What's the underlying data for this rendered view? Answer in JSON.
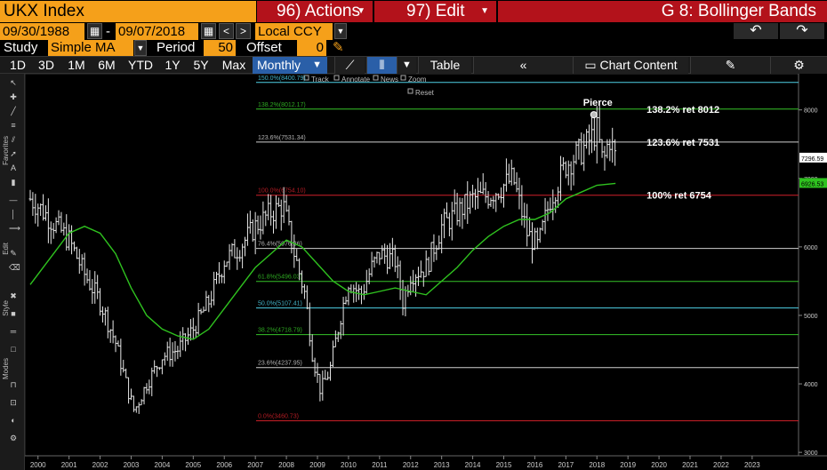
{
  "header": {
    "ticker": "UKX Index",
    "actions_label": "96) Actions",
    "edit_label": "97) Edit",
    "function_title": "G 8: Bollinger Bands"
  },
  "dates": {
    "start": "09/30/1988",
    "separator": "-",
    "end": "09/07/2018",
    "currency": "Local CCY"
  },
  "study": {
    "label": "Study",
    "value": "Simple MA",
    "period_label": "Period",
    "period_value": "50",
    "offset_label": "Offset",
    "offset_value": "0"
  },
  "tabs": [
    "1D",
    "3D",
    "1M",
    "6M",
    "YTD",
    "1Y",
    "5Y",
    "Max"
  ],
  "toolbar": {
    "frequency": "Monthly",
    "table_label": "Table",
    "chart_content_label": "Chart Content"
  },
  "chart_controls": {
    "track": "Track",
    "annotate": "Annotate",
    "news": "News",
    "zoom": "Zoom",
    "reset": "Reset"
  },
  "side_labels": [
    "Favorites",
    "Edit",
    "Style",
    "Modes"
  ],
  "colors": {
    "accent_orange": "#f5a01a",
    "action_red": "#b3121b",
    "active_tab": "#2a5fa8",
    "ma_line": "#2fc21f",
    "fib_green": "#36c428",
    "fib_red": "#d0202a",
    "fib_cyan": "#4fd0e6",
    "fib_gray": "#cfcfcf"
  },
  "chart_data": {
    "type": "line",
    "yticks": [
      3000,
      4000,
      5000,
      6000,
      7000,
      8000
    ],
    "ylim": [
      2950,
      8450
    ],
    "xticks": [
      "2000",
      "2001",
      "2002",
      "2003",
      "2004",
      "2005",
      "2006",
      "2007",
      "2008",
      "2009",
      "2010",
      "2011",
      "2012",
      "2013",
      "2014",
      "2015",
      "2016",
      "2017",
      "2018",
      "2019",
      "2020",
      "2021",
      "2022",
      "2023"
    ],
    "last_price_label": "7296.59",
    "ma_value_label": "6926.53",
    "fib_levels": [
      {
        "label": "150.0%(8400.79)",
        "value": 8400.79,
        "color": "cyan"
      },
      {
        "label": "138.2%(8012.17)",
        "value": 8012.17,
        "color": "green"
      },
      {
        "label": "123.6%(7531.34)",
        "value": 7531.34,
        "color": "gray"
      },
      {
        "label": "100.0%(6754.10)",
        "value": 6754.1,
        "color": "red"
      },
      {
        "label": "76.4%(5976.86)",
        "value": 5976.86,
        "color": "gray"
      },
      {
        "label": "61.8%(5496.03)",
        "value": 5496.03,
        "color": "green"
      },
      {
        "label": "50.0%(5107.41)",
        "value": 5107.41,
        "color": "cyan"
      },
      {
        "label": "38.2%(4718.79)",
        "value": 4718.79,
        "color": "green"
      },
      {
        "label": "23.6%(4237.95)",
        "value": 4237.95,
        "color": "gray"
      },
      {
        "label": "0.0%(3460.73)",
        "value": 3460.73,
        "color": "red"
      }
    ],
    "annotations": [
      {
        "text": "Pierce",
        "x": "2017.9",
        "y": 7930
      },
      {
        "text": "138.2% ret 8012",
        "x": "2019.6",
        "y": 8012
      },
      {
        "text": "123.6% ret 7531",
        "x": "2019.6",
        "y": 7531
      },
      {
        "text": "100% ret 6754",
        "x": "2019.6",
        "y": 6754
      }
    ],
    "series": [
      {
        "name": "UKX",
        "x": [
          1999.75,
          2000.0,
          2000.5,
          2001.0,
          2001.5,
          2002.0,
          2002.5,
          2002.9,
          2003.1,
          2003.5,
          2004.0,
          2004.5,
          2005.0,
          2005.5,
          2006.0,
          2006.5,
          2007.0,
          2007.5,
          2007.9,
          2008.2,
          2008.6,
          2008.85,
          2009.1,
          2009.4,
          2009.75,
          2010.0,
          2010.4,
          2010.75,
          2011.0,
          2011.5,
          2011.75,
          2012.0,
          2012.5,
          2013.0,
          2013.5,
          2014.0,
          2014.5,
          2015.0,
          2015.3,
          2015.75,
          2016.1,
          2016.5,
          2017.0,
          2017.5,
          2018.0,
          2018.2,
          2018.4,
          2018.6
        ],
        "close": [
          6700,
          6600,
          6350,
          6100,
          5600,
          5200,
          4600,
          3900,
          3600,
          4000,
          4400,
          4500,
          4800,
          5200,
          5800,
          6000,
          6300,
          6500,
          6600,
          6000,
          5300,
          4400,
          3900,
          4200,
          5000,
          5500,
          5300,
          5700,
          5900,
          5800,
          5200,
          5600,
          5700,
          6300,
          6500,
          6700,
          6750,
          6900,
          7000,
          6200,
          6000,
          6700,
          7200,
          7400,
          7700,
          7200,
          7600,
          7300
        ]
      },
      {
        "name": "MA 50",
        "x": [
          1999.75,
          2000.5,
          2001.0,
          2001.5,
          2002.0,
          2002.5,
          2003.0,
          2003.5,
          2004.0,
          2004.5,
          2005.0,
          2005.5,
          2006.0,
          2006.5,
          2007.0,
          2007.5,
          2008.0,
          2008.5,
          2009.0,
          2009.5,
          2010.0,
          2010.5,
          2011.0,
          2011.5,
          2012.0,
          2012.5,
          2013.0,
          2013.5,
          2014.0,
          2014.5,
          2015.0,
          2015.5,
          2016.0,
          2016.5,
          2017.0,
          2017.5,
          2018.0,
          2018.6
        ],
        "values": [
          5450,
          5900,
          6200,
          6300,
          6200,
          5900,
          5400,
          5000,
          4800,
          4700,
          4650,
          4800,
          5100,
          5400,
          5700,
          5900,
          6100,
          6000,
          5750,
          5500,
          5350,
          5300,
          5350,
          5400,
          5350,
          5300,
          5500,
          5700,
          5950,
          6150,
          6300,
          6400,
          6400,
          6500,
          6700,
          6800,
          6900,
          6926.53
        ]
      }
    ]
  }
}
